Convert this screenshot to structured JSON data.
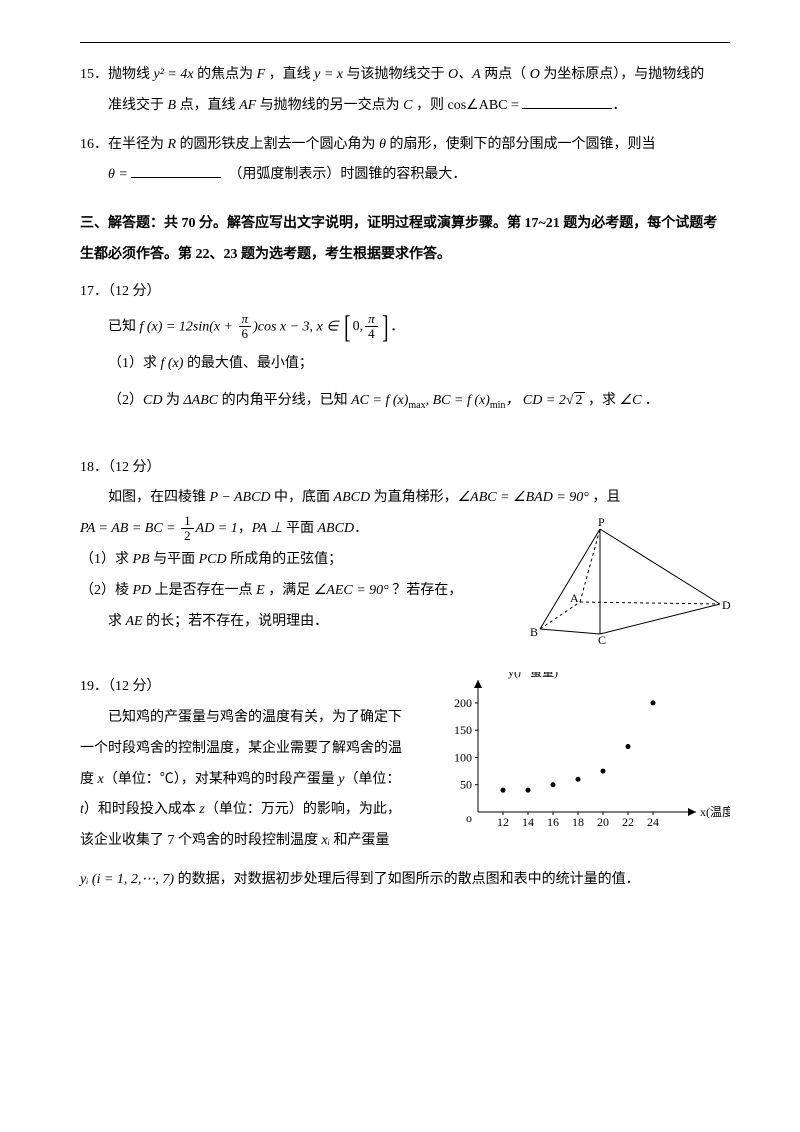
{
  "q15": {
    "num": "15．",
    "line1a": "抛物线 ",
    "eq1": "y² = 4x",
    "line1b": " 的焦点为 ",
    "F": "F",
    "line1c": " ，直线 ",
    "eq2": "y = x",
    "line1d": " 与该抛物线交于 ",
    "OA": "O、A",
    "line1e": " 两点（ ",
    "O": "O",
    "line1f": " 为坐标原点），与抛物线的",
    "line2a": "准线交于 ",
    "B": "B",
    "line2b": " 点，直线 ",
    "AF": "AF",
    "line2c": " 与抛物线的另一交点为 ",
    "C": "C",
    "line2d": " ，则 ",
    "cos": "cos∠ABC = ",
    "period": "．"
  },
  "q16": {
    "num": "16．",
    "line1a": "在半径为 ",
    "R": "R",
    "line1b": " 的圆形铁皮上割去一个圆心角为 ",
    "theta": "θ",
    "line1c": " 的扇形，使剩下的部分围成一个圆锥，则当",
    "line2a": "θ = ",
    "line2b": "（用弧度制表示）时圆锥的容积最大．"
  },
  "section3": {
    "title": "三、解答题：共 70 分。解答应写出文字说明，证明过程或演算步骤。第 17~21 题为必考题，每个试题考生都必须作答。第 22、23 题为选考题，考生根据要求作答。"
  },
  "q17": {
    "num": "17．",
    "pts": "（12 分）",
    "known": "已知 ",
    "fx": "f (x) = 12sin(x + ",
    "pi": "π",
    "six": "6",
    "cos": ")cos x − 3, x ∈",
    "zero": "0, ",
    "four": "4",
    "period": "．",
    "p1a": "（1）求 ",
    "p1fx": "f (x)",
    "p1b": " 的最大值、最小值；",
    "p2a": "（2）",
    "CD": "CD",
    "p2b": " 为 ",
    "tri": "ΔABC",
    "p2c": " 的内角平分线，已知 ",
    "AC": "AC = f (x)",
    "max": "max",
    "comma": ", ",
    "BC": "BC = f (x)",
    "min": "min",
    "CDeq": "，  CD = 2",
    "root2": "2",
    "p2d": " ，求 ",
    "angleC": "∠C",
    "p2e": " ．"
  },
  "q18": {
    "num": "18．",
    "pts": "（12 分）",
    "l1a": "如图，在四棱锥 ",
    "PABCD": "P − ABCD",
    "l1b": " 中，底面 ",
    "ABCD": "ABCD",
    "l1c": " 为直角梯形，",
    "ang": "∠ABC = ∠BAD = 90°",
    "l1d": " ，且",
    "l2a": "PA = AB = BC = ",
    "one": "1",
    "two": "2",
    "AD": "AD = 1",
    "l2b": "，",
    "PA": "PA ⊥ ",
    "plane": "平面 ",
    "ABCD2": "ABCD",
    "l2c": "．",
    "p1a": "（1）求 ",
    "PB": "PB",
    "p1b": " 与平面 ",
    "PCD": "PCD",
    "p1c": " 所成角的正弦值；",
    "p2a": "（2）棱 ",
    "PD": "PD",
    "p2b": " 上是否存在一点 ",
    "E": "E",
    "p2c": " ，满足 ",
    "AEC": "∠AEC = 90°",
    "p2d": " ？若存在，",
    "p3a": "求 ",
    "AE": "AE",
    "p3b": " 的长；若不存在，说明理由．",
    "fig": {
      "P": "P",
      "A": "A",
      "B": "B",
      "C": "C",
      "D": "D"
    }
  },
  "q19": {
    "num": "19．",
    "pts": "（12 分）",
    "l1": "已知鸡的产蛋量与鸡舍的温度有关，为了确定下",
    "l2": "一个时段鸡舍的控制温度，某企业需要了解鸡舍的温",
    "l3a": "度 ",
    "x": "x",
    "l3b": "（单位：℃），对某种鸡的时段产蛋量 ",
    "y": "y",
    "l3c": "（单位：",
    "l4a": "t",
    "l4b": "）和时段投入成本 ",
    "z": "z",
    "l4c": "（单位：万元）的影响，为此，",
    "l5a": "该企业收集了 7 个鸡舍的时段控制温度 ",
    "xi": "xᵢ",
    "l5b": " 和产蛋量",
    "l6a": "yᵢ (i = 1, 2,⋯, 7)",
    "l6b": " 的数据，对数据初步处理后得到了如图所示的散点图和表中的统计量的值．",
    "chart": {
      "ylabel": "y(产蛋量)",
      "xlabel": "x(温度)",
      "o": "o",
      "yticks": [
        "50",
        "100",
        "150",
        "200"
      ],
      "xticks": [
        "12",
        "14",
        "16",
        "18",
        "20",
        "22",
        "24"
      ],
      "points": [
        {
          "x": 12,
          "y": 40
        },
        {
          "x": 14,
          "y": 40
        },
        {
          "x": 16,
          "y": 50
        },
        {
          "x": 18,
          "y": 60
        },
        {
          "x": 20,
          "y": 75
        },
        {
          "x": 22,
          "y": 120
        },
        {
          "x": 24,
          "y": 200
        }
      ],
      "colors": {
        "axis": "#000",
        "point": "#000",
        "bg": "#fff"
      }
    }
  }
}
